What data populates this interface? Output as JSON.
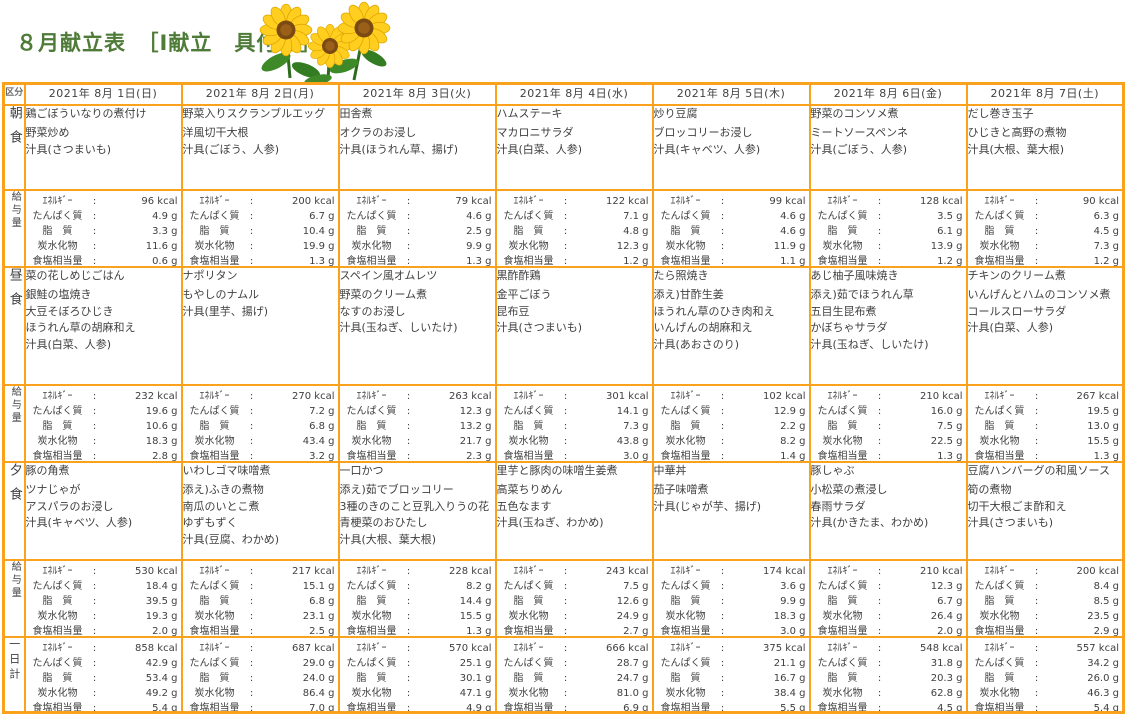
{
  "title": "８月献立表　［I献立　具付き］",
  "table": {
    "corner_label": "区分",
    "row_labels": {
      "breakfast": "朝食",
      "lunch": "昼食",
      "dinner": "夕食",
      "serving": "給与量",
      "daily_total": "一日計"
    },
    "nutrition_labels": [
      "ｴﾈﾙｷﾞｰ",
      "たんぱく質",
      "脂　質",
      "炭水化物",
      "食塩相当量"
    ],
    "colors": {
      "border": "#faa21e",
      "title_green": "#4e7b37",
      "text": "#3f3f3f"
    },
    "days": [
      {
        "date": "2021年 8月 1日(日)",
        "breakfast": {
          "items": [
            "鶏ごぼういなりの煮付け",
            "野菜炒め",
            "汁具(さつまいも)"
          ],
          "values": [
            "96 kcal",
            "4.9 g",
            "3.3 g",
            "11.6 g",
            "0.6 g"
          ]
        },
        "lunch": {
          "items": [
            "菜の花しめじごはん",
            "銀鮭の塩焼き",
            "大豆そぼろひじき",
            "ほうれん草の胡麻和え",
            "汁具(白菜、人参)"
          ],
          "values": [
            "232 kcal",
            "19.6 g",
            "10.6 g",
            "18.3 g",
            "2.8 g"
          ]
        },
        "dinner": {
          "items": [
            "豚の角煮",
            "ツナじゃが",
            "アスパラのお浸し",
            "汁具(キャベツ、人参)"
          ],
          "values": [
            "530 kcal",
            "18.4 g",
            "39.5 g",
            "19.3 g",
            "2.0 g"
          ]
        },
        "daily_total": {
          "values": [
            "858 kcal",
            "42.9 g",
            "53.4 g",
            "49.2 g",
            "5.4 g"
          ]
        }
      },
      {
        "date": "2021年 8月 2日(月)",
        "breakfast": {
          "items": [
            "野菜入りスクランブルエッグ",
            "洋風切干大根",
            "汁具(ごぼう、人参)"
          ],
          "values": [
            "200 kcal",
            "6.7 g",
            "10.4 g",
            "19.9 g",
            "1.3 g"
          ]
        },
        "lunch": {
          "items": [
            "ナポリタン",
            "もやしのナムル",
            "汁具(里芋、揚げ)"
          ],
          "values": [
            "270 kcal",
            "7.2 g",
            "6.8 g",
            "43.4 g",
            "3.2 g"
          ]
        },
        "dinner": {
          "items": [
            "いわしゴマ味噌煮",
            "添え)ふきの煮物",
            "南瓜のいとこ煮",
            "ゆずもずく",
            "汁具(豆腐、わかめ)"
          ],
          "values": [
            "217 kcal",
            "15.1 g",
            "6.8 g",
            "23.1 g",
            "2.5 g"
          ]
        },
        "daily_total": {
          "values": [
            "687 kcal",
            "29.0 g",
            "24.0 g",
            "86.4 g",
            "7.0 g"
          ]
        }
      },
      {
        "date": "2021年 8月 3日(火)",
        "breakfast": {
          "items": [
            "田舎煮",
            "オクラのお浸し",
            "汁具(ほうれん草、揚げ)"
          ],
          "values": [
            "79 kcal",
            "4.6 g",
            "2.5 g",
            "9.9 g",
            "1.3 g"
          ]
        },
        "lunch": {
          "items": [
            "スペイン風オムレツ",
            "野菜のクリーム煮",
            "なすのお浸し",
            "汁具(玉ねぎ、しいたけ)"
          ],
          "values": [
            "263 kcal",
            "12.3 g",
            "13.2 g",
            "21.7 g",
            "2.3 g"
          ]
        },
        "dinner": {
          "items": [
            "一口かつ",
            "添え)茹でブロッコリー",
            "3種のきのこと豆乳入りうの花",
            "青梗菜のおひたし",
            "汁具(大根、葉大根)"
          ],
          "values": [
            "228 kcal",
            "8.2 g",
            "14.4 g",
            "15.5 g",
            "1.3 g"
          ]
        },
        "daily_total": {
          "values": [
            "570 kcal",
            "25.1 g",
            "30.1 g",
            "47.1 g",
            "4.9 g"
          ]
        }
      },
      {
        "date": "2021年 8月 4日(水)",
        "breakfast": {
          "items": [
            "ハムステーキ",
            "マカロニサラダ",
            "汁具(白菜、人参)"
          ],
          "values": [
            "122 kcal",
            "7.1 g",
            "4.8 g",
            "12.3 g",
            "1.2 g"
          ]
        },
        "lunch": {
          "items": [
            "黒酢酢鶏",
            "金平ごぼう",
            "昆布豆",
            "汁具(さつまいも)"
          ],
          "values": [
            "301 kcal",
            "14.1 g",
            "7.3 g",
            "43.8 g",
            "3.0 g"
          ]
        },
        "dinner": {
          "items": [
            "里芋と豚肉の味噌生姜煮",
            "高菜ちりめん",
            "五色なます",
            "汁具(玉ねぎ、わかめ)"
          ],
          "values": [
            "243 kcal",
            "7.5 g",
            "12.6 g",
            "24.9 g",
            "2.7 g"
          ]
        },
        "daily_total": {
          "values": [
            "666 kcal",
            "28.7 g",
            "24.7 g",
            "81.0 g",
            "6.9 g"
          ]
        }
      },
      {
        "date": "2021年 8月 5日(木)",
        "breakfast": {
          "items": [
            "炒り豆腐",
            "ブロッコリーお浸し",
            "汁具(キャベツ、人参)"
          ],
          "values": [
            "99 kcal",
            "4.6 g",
            "4.6 g",
            "11.9 g",
            "1.1 g"
          ]
        },
        "lunch": {
          "items": [
            "たら照焼き",
            "添え)甘酢生姜",
            "ほうれん草のひき肉和え",
            "いんげんの胡麻和え",
            "汁具(あおさのり)"
          ],
          "values": [
            "102 kcal",
            "12.9 g",
            "2.2 g",
            "8.2 g",
            "1.4 g"
          ]
        },
        "dinner": {
          "items": [
            "中華丼",
            "茄子味噌煮",
            "汁具(じゃが芋、揚げ)"
          ],
          "values": [
            "174 kcal",
            "3.6 g",
            "9.9 g",
            "18.3 g",
            "3.0 g"
          ]
        },
        "daily_total": {
          "values": [
            "375 kcal",
            "21.1 g",
            "16.7 g",
            "38.4 g",
            "5.5 g"
          ]
        }
      },
      {
        "date": "2021年 8月 6日(金)",
        "breakfast": {
          "items": [
            "野菜のコンソメ煮",
            "ミートソースペンネ",
            "汁具(ごぼう、人参)"
          ],
          "values": [
            "128 kcal",
            "3.5 g",
            "6.1 g",
            "13.9 g",
            "1.2 g"
          ]
        },
        "lunch": {
          "items": [
            "あじ柚子風味焼き",
            "添え)茹でほうれん草",
            "五目生昆布煮",
            "かぼちゃサラダ",
            "汁具(玉ねぎ、しいたけ)"
          ],
          "values": [
            "210 kcal",
            "16.0 g",
            "7.5 g",
            "22.5 g",
            "1.3 g"
          ]
        },
        "dinner": {
          "items": [
            "豚しゃぶ",
            "小松菜の煮浸し",
            "春雨サラダ",
            "汁具(かきたま、わかめ)"
          ],
          "values": [
            "210 kcal",
            "12.3 g",
            "6.7 g",
            "26.4 g",
            "2.0 g"
          ]
        },
        "daily_total": {
          "values": [
            "548 kcal",
            "31.8 g",
            "20.3 g",
            "62.8 g",
            "4.5 g"
          ]
        }
      },
      {
        "date": "2021年 8月 7日(土)",
        "breakfast": {
          "items": [
            "だし巻き玉子",
            "ひじきと高野の煮物",
            "汁具(大根、葉大根)"
          ],
          "values": [
            "90 kcal",
            "6.3 g",
            "4.5 g",
            "7.3 g",
            "1.2 g"
          ]
        },
        "lunch": {
          "items": [
            "チキンのクリーム煮",
            "いんげんとハムのコンソメ煮",
            "コールスローサラダ",
            "汁具(白菜、人参)"
          ],
          "values": [
            "267 kcal",
            "19.5 g",
            "13.0 g",
            "15.5 g",
            "1.3 g"
          ]
        },
        "dinner": {
          "items": [
            "豆腐ハンバーグの和風ソース",
            "筍の煮物",
            "切干大根ごま酢和え",
            "汁具(さつまいも)"
          ],
          "values": [
            "200 kcal",
            "8.4 g",
            "8.5 g",
            "23.5 g",
            "2.9 g"
          ]
        },
        "daily_total": {
          "values": [
            "557 kcal",
            "34.2 g",
            "26.0 g",
            "46.3 g",
            "5.4 g"
          ]
        }
      }
    ]
  }
}
